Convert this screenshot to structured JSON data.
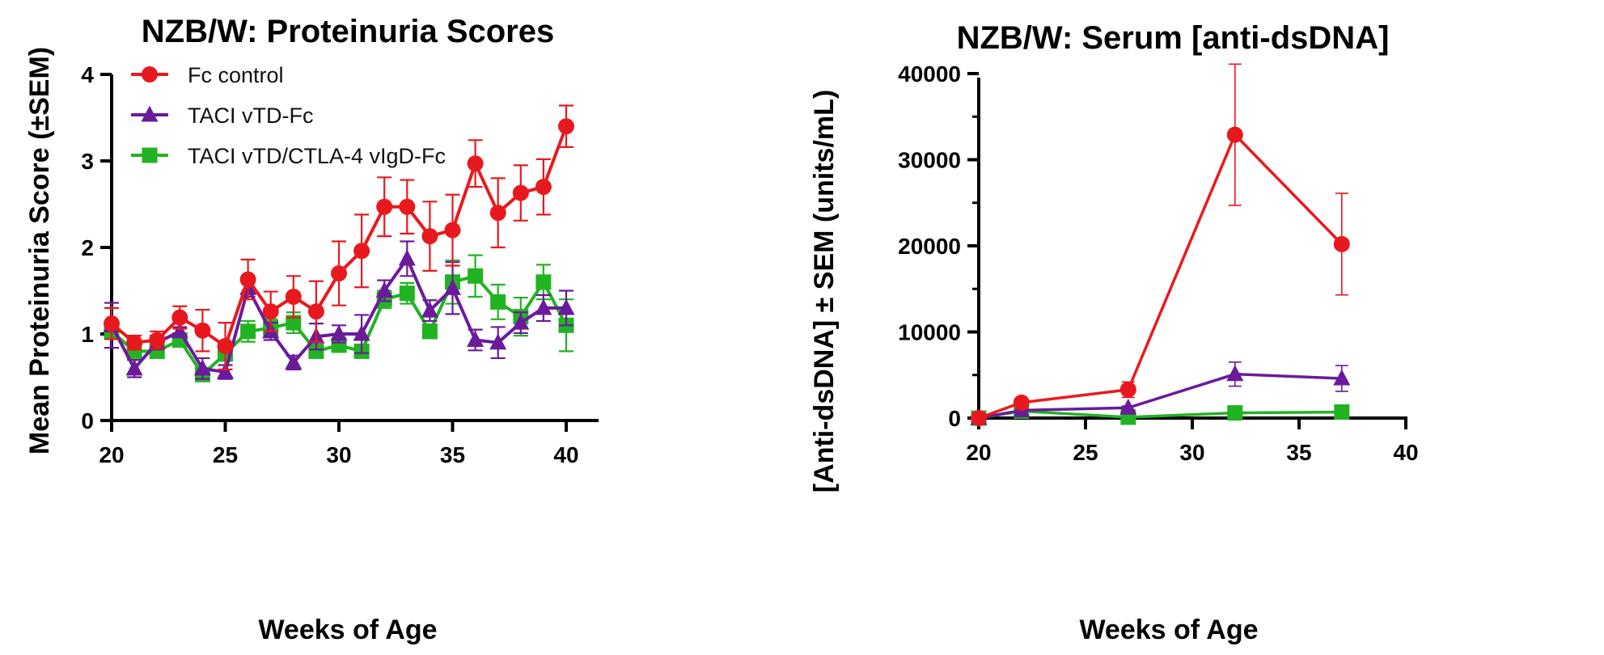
{
  "chart_data": [
    {
      "type": "line",
      "title": "NZB/W:  Proteinuria Scores",
      "xlabel": "Weeks of Age",
      "ylabel": "Mean Proteinuria Score (±SEM)",
      "xlim": [
        20,
        40
      ],
      "ylim": [
        0,
        4
      ],
      "xticks": [
        20,
        25,
        30,
        35,
        40
      ],
      "yticks": [
        0,
        1,
        2,
        3,
        4
      ],
      "grid": false,
      "legend_position": "top-left",
      "x": [
        20,
        21,
        22,
        23,
        24,
        25,
        26,
        27,
        28,
        29,
        30,
        31,
        32,
        33,
        34,
        35,
        36,
        37,
        38,
        39,
        40
      ],
      "series": [
        {
          "name": "Fc control",
          "color": "#e8191e",
          "marker": "circle",
          "values": [
            1.12,
            0.9,
            0.93,
            1.19,
            1.04,
            0.86,
            1.63,
            1.26,
            1.43,
            1.26,
            1.7,
            1.96,
            2.47,
            2.47,
            2.13,
            2.2,
            2.97,
            2.4,
            2.63,
            2.7,
            3.4
          ],
          "sem": [
            0.18,
            0.08,
            0.1,
            0.13,
            0.24,
            0.27,
            0.23,
            0.23,
            0.24,
            0.35,
            0.37,
            0.42,
            0.34,
            0.31,
            0.4,
            0.41,
            0.27,
            0.4,
            0.32,
            0.32,
            0.24
          ]
        },
        {
          "name": "TACI vTD-Fc",
          "color": "#6a1b9a",
          "marker": "triangle",
          "values": [
            1.1,
            0.6,
            0.9,
            1.03,
            0.6,
            0.56,
            1.53,
            1.03,
            0.67,
            0.97,
            1.0,
            1.0,
            1.5,
            1.87,
            1.27,
            1.53,
            0.93,
            0.9,
            1.13,
            1.3,
            1.3
          ],
          "sem": [
            0.26,
            0.1,
            0.08,
            0.05,
            0.12,
            0.08,
            0.1,
            0.1,
            0.08,
            0.15,
            0.1,
            0.22,
            0.12,
            0.2,
            0.12,
            0.3,
            0.12,
            0.18,
            0.12,
            0.15,
            0.2
          ]
        },
        {
          "name": "TACI vTD/CTLA-4 vIgD-Fc",
          "color": "#22b322",
          "marker": "square",
          "values": [
            1.03,
            0.8,
            0.8,
            0.93,
            0.53,
            0.77,
            1.03,
            1.07,
            1.13,
            0.8,
            0.87,
            0.8,
            1.4,
            1.47,
            1.03,
            1.6,
            1.67,
            1.37,
            1.2,
            1.6,
            1.1
          ],
          "sem": [
            0.08,
            0.05,
            0.05,
            0.05,
            0.06,
            0.08,
            0.12,
            0.1,
            0.12,
            0.06,
            0.05,
            0.05,
            0.1,
            0.12,
            0.08,
            0.25,
            0.24,
            0.2,
            0.22,
            0.2,
            0.3
          ]
        }
      ]
    },
    {
      "type": "line",
      "title": "NZB/W:  Serum [anti-dsDNA]",
      "xlabel": "Weeks of Age",
      "ylabel": "[Anti-dsDNA] ± SEM (units/mL)",
      "xlim": [
        20,
        40
      ],
      "ylim": [
        0,
        42000
      ],
      "xticks": [
        20,
        25,
        30,
        35,
        40
      ],
      "yticks": [
        0,
        10000,
        20000,
        30000,
        40000
      ],
      "grid": false,
      "legend_position": "none",
      "x": [
        20,
        22,
        27,
        32,
        37
      ],
      "series": [
        {
          "name": "Fc control",
          "color": "#e8191e",
          "marker": "circle",
          "values": [
            0,
            1800,
            3300,
            32900,
            20200
          ],
          "sem": [
            0,
            300,
            900,
            8200,
            5900
          ]
        },
        {
          "name": "TACI vTD-Fc",
          "color": "#6a1b9a",
          "marker": "triangle",
          "values": [
            0,
            900,
            1200,
            5100,
            4600
          ],
          "sem": [
            0,
            150,
            200,
            1400,
            1500
          ]
        },
        {
          "name": "TACI vTD/CTLA-4 vIgD-Fc",
          "color": "#22b322",
          "marker": "square",
          "values": [
            0,
            800,
            100,
            600,
            700
          ],
          "sem": [
            0,
            100,
            50,
            200,
            200
          ]
        }
      ]
    }
  ]
}
